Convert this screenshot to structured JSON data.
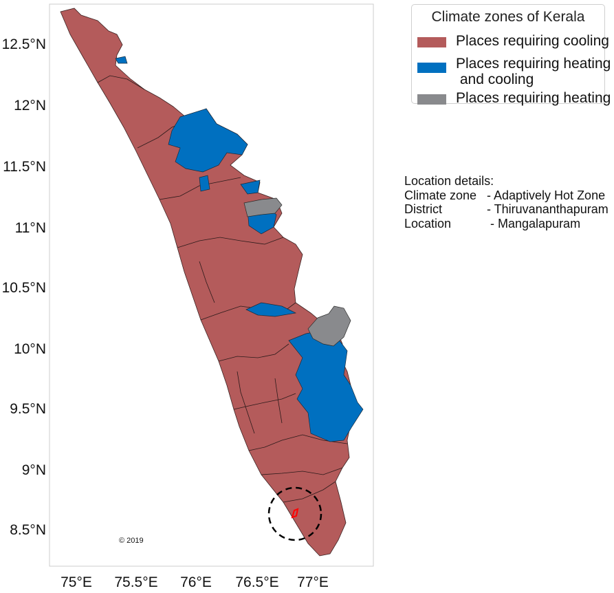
{
  "map": {
    "x_ticks": [
      "75°E",
      "75.5°E",
      "76°E",
      "76.5°E",
      "77°E"
    ],
    "y_ticks": [
      "12.5°N",
      "12°N",
      "11.5°N",
      "11°N",
      "10.5°N",
      "10°N",
      "9.5°N",
      "9°N",
      "8.5°N"
    ],
    "copyright": "© 2019",
    "highlight": {
      "lat": 8.63,
      "lon": 76.82,
      "circle_color": "#000000",
      "marker_color": "#ff0000"
    },
    "zone_colors": {
      "cooling": "#b45b5b",
      "heating_cooling": "#0070c0",
      "heating": "#898a8d"
    }
  },
  "legend": {
    "title": "Climate zones of Kerala",
    "items": [
      {
        "label": "Places requiring cooling",
        "color": "#b45b5b"
      },
      {
        "label": "Places requiring heating\n and cooling",
        "color": "#0070c0"
      },
      {
        "label": "Places requiring heating",
        "color": "#898a8d"
      }
    ]
  },
  "details": {
    "heading": "Location details:",
    "rows": [
      {
        "key": "Climate zone",
        "value": "- Adaptively Hot Zone"
      },
      {
        "key": "District",
        "value": "- Thiruvananthapuram"
      },
      {
        "key": "Location",
        "value": " - Mangalapuram"
      }
    ]
  }
}
